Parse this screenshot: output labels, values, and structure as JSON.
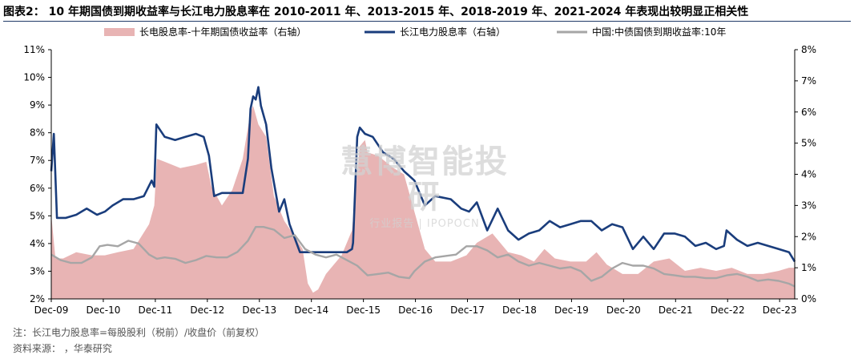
{
  "figure_title": "图表2： 10 年期国债到期收益率与长江电力股息率在 2010-2011 年、2013-2015 年、2018-2019 年、2021-2024 年表现出较明显正相关性",
  "note": "注：长江电力股息率=每股股利（税前）/收盘价（前复权）",
  "source": "资料来源：      ，华泰研究",
  "watermark": {
    "main": "慧博智能投研",
    "sub": "行业报告 | IPOPOCN"
  },
  "colors": {
    "spread": "#e8b4b4",
    "dividend": "#1a3d7c",
    "bond": "#a6a6a6",
    "axis": "#000000"
  },
  "chart_data": {
    "type": "line",
    "x_ticks": [
      "Dec-09",
      "Dec-10",
      "Dec-11",
      "Dec-12",
      "Dec-13",
      "Dec-14",
      "Dec-15",
      "Dec-16",
      "Dec-17",
      "Dec-18",
      "Dec-19",
      "Dec-20",
      "Dec-21",
      "Dec-22",
      "Dec-23"
    ],
    "x_range": [
      2009.92,
      2024.21
    ],
    "left_axis": {
      "ticks": [
        "2%",
        "3%",
        "4%",
        "5%",
        "6%",
        "7%",
        "8%",
        "9%",
        "10%",
        "11%"
      ],
      "range": [
        2,
        11
      ]
    },
    "right_axis": {
      "ticks": [
        "0%",
        "1%",
        "2%",
        "3%",
        "4%",
        "5%",
        "6%",
        "7%",
        "8%"
      ],
      "range": [
        0,
        8
      ]
    },
    "series": [
      {
        "name": "长电股息率-十年期国债收益率（右轴）",
        "kind": "area",
        "axis": "right",
        "x": [
          2009.92,
          2010.0,
          2010.15,
          2010.4,
          2010.7,
          2010.95,
          2011.2,
          2011.5,
          2011.8,
          2011.9,
          2011.95,
          2012.1,
          2012.4,
          2012.7,
          2012.9,
          2013.0,
          2013.2,
          2013.4,
          2013.6,
          2013.75,
          2013.8,
          2013.9,
          2014.05,
          2014.2,
          2014.4,
          2014.6,
          2014.75,
          2014.85,
          2014.95,
          2015.05,
          2015.2,
          2015.5,
          2015.7,
          2015.85,
          2015.95,
          2016.0,
          2016.2,
          2016.5,
          2016.7,
          2016.9,
          2017.1,
          2017.3,
          2017.6,
          2017.9,
          2018.1,
          2018.4,
          2018.7,
          2018.95,
          2019.2,
          2019.4,
          2019.6,
          2019.9,
          2020.2,
          2020.4,
          2020.6,
          2020.9,
          2021.2,
          2021.5,
          2021.8,
          2022.1,
          2022.4,
          2022.7,
          2023.0,
          2023.3,
          2023.6,
          2023.9,
          2024.1,
          2024.21
        ],
        "values": [
          2.7,
          1.3,
          1.3,
          1.5,
          1.4,
          1.4,
          1.5,
          1.6,
          2.4,
          3.0,
          4.5,
          4.4,
          4.2,
          4.3,
          4.4,
          3.6,
          3.0,
          3.5,
          4.5,
          6.0,
          6.2,
          5.6,
          5.2,
          3.3,
          2.5,
          2.0,
          1.6,
          0.5,
          0.2,
          0.3,
          0.8,
          1.4,
          2.2,
          4.9,
          5.1,
          4.7,
          4.6,
          4.2,
          4.0,
          2.8,
          1.6,
          1.2,
          1.2,
          1.4,
          1.8,
          2.1,
          1.5,
          1.4,
          1.2,
          1.6,
          1.3,
          1.2,
          1.2,
          1.5,
          1.1,
          0.8,
          0.8,
          1.2,
          1.3,
          0.9,
          1.0,
          0.9,
          1.0,
          0.8,
          0.8,
          0.9,
          1.0,
          1.0
        ]
      },
      {
        "name": "长江电力股息率（右轴）",
        "kind": "line",
        "axis": "right",
        "x": [
          2009.92,
          2009.97,
          2010.03,
          2010.08,
          2010.2,
          2010.4,
          2010.6,
          2010.8,
          2010.95,
          2011.1,
          2011.3,
          2011.5,
          2011.7,
          2011.85,
          2011.9,
          2011.94,
          2012.1,
          2012.3,
          2012.5,
          2012.7,
          2012.85,
          2012.95,
          2013.05,
          2013.2,
          2013.4,
          2013.6,
          2013.7,
          2013.75,
          2013.8,
          2013.85,
          2013.9,
          2013.95,
          2014.05,
          2014.15,
          2014.3,
          2014.4,
          2014.5,
          2014.7,
          2014.8,
          2014.82,
          2015.0,
          2015.2,
          2015.5,
          2015.6,
          2015.7,
          2015.72,
          2015.8,
          2015.85,
          2015.95,
          2016.1,
          2016.3,
          2016.5,
          2016.7,
          2016.9,
          2017.1,
          2017.3,
          2017.6,
          2017.8,
          2017.95,
          2018.1,
          2018.3,
          2018.5,
          2018.7,
          2018.9,
          2019.1,
          2019.3,
          2019.5,
          2019.7,
          2019.9,
          2020.1,
          2020.3,
          2020.5,
          2020.7,
          2020.9,
          2021.1,
          2021.3,
          2021.5,
          2021.7,
          2021.9,
          2022.1,
          2022.3,
          2022.5,
          2022.7,
          2022.85,
          2022.9,
          2023.1,
          2023.3,
          2023.5,
          2023.7,
          2023.9,
          2024.1,
          2024.21
        ],
        "values": [
          4.1,
          5.3,
          2.6,
          2.6,
          2.6,
          2.7,
          2.9,
          2.7,
          2.8,
          3.0,
          3.2,
          3.2,
          3.3,
          3.8,
          3.6,
          5.6,
          5.2,
          5.1,
          5.2,
          5.3,
          5.2,
          4.6,
          3.3,
          3.4,
          3.4,
          3.4,
          4.5,
          6.1,
          6.5,
          6.4,
          6.8,
          6.2,
          5.6,
          4.2,
          2.8,
          3.2,
          2.4,
          1.5,
          1.5,
          1.5,
          1.5,
          1.5,
          1.5,
          1.5,
          1.6,
          1.8,
          5.2,
          5.5,
          5.3,
          5.2,
          4.7,
          4.5,
          4.1,
          3.8,
          3.0,
          3.3,
          3.2,
          2.9,
          2.8,
          3.1,
          2.2,
          2.9,
          2.2,
          1.9,
          2.1,
          2.2,
          2.5,
          2.3,
          2.4,
          2.5,
          2.5,
          2.2,
          2.4,
          2.3,
          1.6,
          2.0,
          1.6,
          2.1,
          2.1,
          2.0,
          1.7,
          1.8,
          1.6,
          1.7,
          2.2,
          1.9,
          1.7,
          1.8,
          1.7,
          1.6,
          1.5,
          1.2
        ]
      },
      {
        "name": "中国:中债国债到期收益率:10年",
        "kind": "line",
        "axis": "left",
        "x": [
          2009.92,
          2010.1,
          2010.3,
          2010.5,
          2010.7,
          2010.85,
          2011.0,
          2011.2,
          2011.4,
          2011.6,
          2011.8,
          2011.95,
          2012.1,
          2012.3,
          2012.5,
          2012.7,
          2012.9,
          2013.1,
          2013.3,
          2013.5,
          2013.7,
          2013.85,
          2014.0,
          2014.2,
          2014.4,
          2014.6,
          2014.8,
          2015.0,
          2015.2,
          2015.4,
          2015.6,
          2015.8,
          2016.0,
          2016.2,
          2016.4,
          2016.6,
          2016.8,
          2016.9,
          2017.1,
          2017.3,
          2017.5,
          2017.7,
          2017.9,
          2018.1,
          2018.3,
          2018.5,
          2018.7,
          2018.9,
          2019.1,
          2019.3,
          2019.5,
          2019.7,
          2019.9,
          2020.1,
          2020.3,
          2020.5,
          2020.7,
          2020.9,
          2021.1,
          2021.3,
          2021.5,
          2021.7,
          2021.9,
          2022.1,
          2022.3,
          2022.5,
          2022.7,
          2022.9,
          2023.1,
          2023.3,
          2023.5,
          2023.7,
          2023.9,
          2024.1,
          2024.21
        ],
        "values": [
          3.6,
          3.4,
          3.3,
          3.3,
          3.5,
          3.9,
          3.95,
          3.9,
          4.1,
          4.0,
          3.6,
          3.45,
          3.5,
          3.45,
          3.3,
          3.4,
          3.55,
          3.5,
          3.5,
          3.7,
          4.1,
          4.6,
          4.6,
          4.5,
          4.2,
          4.3,
          3.8,
          3.6,
          3.5,
          3.6,
          3.4,
          3.2,
          2.85,
          2.9,
          2.95,
          2.8,
          2.75,
          3.0,
          3.35,
          3.5,
          3.55,
          3.6,
          3.9,
          3.9,
          3.75,
          3.5,
          3.6,
          3.35,
          3.2,
          3.3,
          3.2,
          3.1,
          3.15,
          3.0,
          2.65,
          2.8,
          3.1,
          3.3,
          3.2,
          3.2,
          3.1,
          2.9,
          2.85,
          2.8,
          2.8,
          2.75,
          2.75,
          2.85,
          2.9,
          2.8,
          2.65,
          2.7,
          2.65,
          2.55,
          2.45
        ]
      }
    ]
  }
}
